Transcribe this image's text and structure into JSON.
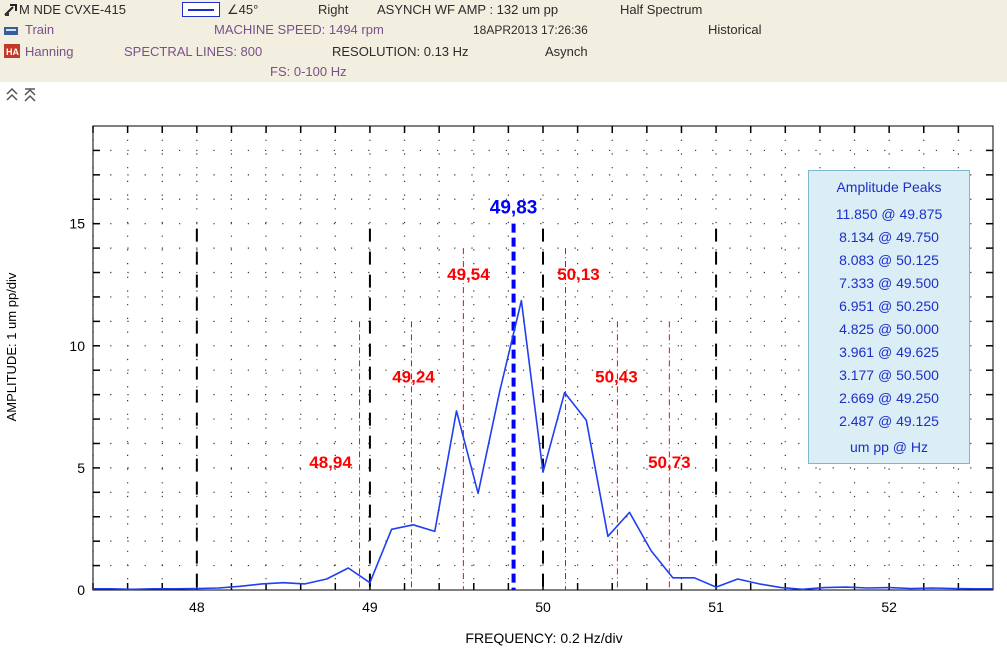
{
  "header": {
    "machine": "M NDE CVXE-415",
    "angle": "∠45°",
    "direction": "Right",
    "measurement": "ASYNCH WF AMP : 132 um pp",
    "spectrum_mode": "Half Spectrum",
    "train": "Train",
    "machine_speed": "MACHINE SPEED: 1494 rpm",
    "timestamp": "18APR2013 17:26:36",
    "data_mode": "Historical",
    "window": "Hanning",
    "spectral_lines": "SPECTRAL LINES: 800",
    "resolution": "RESOLUTION:  0.13 Hz",
    "sampling": "Asynch",
    "fs": "FS: 0-100 Hz"
  },
  "chart_data": {
    "type": "line",
    "xlabel": "FREQUENCY: 0.2 Hz/div",
    "ylabel": "AMPLITUDE: 1 um pp/div",
    "xlim": [
      47.4,
      52.6
    ],
    "ylim": [
      0,
      19
    ],
    "x_ticks": [
      48,
      49,
      50,
      51,
      52
    ],
    "y_ticks": [
      0,
      5,
      10,
      15
    ],
    "grid": "dotted",
    "series": [
      {
        "color": "#1f3ff0",
        "x": [
          47.4,
          47.5,
          47.625,
          47.75,
          47.875,
          48.0,
          48.125,
          48.25,
          48.375,
          48.5,
          48.625,
          48.75,
          48.875,
          49.0,
          49.125,
          49.25,
          49.375,
          49.5,
          49.625,
          49.75,
          49.875,
          50.0,
          50.125,
          50.25,
          50.375,
          50.5,
          50.625,
          50.75,
          50.875,
          51.0,
          51.125,
          51.25,
          51.375,
          51.5,
          51.625,
          51.75,
          51.875,
          52.0,
          52.125,
          52.25,
          52.375,
          52.5,
          52.6
        ],
        "y": [
          0.05,
          0.05,
          0.03,
          0.05,
          0.05,
          0.06,
          0.08,
          0.15,
          0.25,
          0.3,
          0.25,
          0.45,
          0.9,
          0.3,
          2.487,
          2.669,
          2.4,
          7.333,
          3.961,
          8.134,
          11.85,
          4.825,
          8.083,
          6.951,
          2.2,
          3.177,
          1.6,
          0.5,
          0.5,
          0.12,
          0.45,
          0.25,
          0.1,
          0.03,
          0.1,
          0.12,
          0.08,
          0.1,
          0.06,
          0.08,
          0.06,
          0.05,
          0.05
        ]
      }
    ],
    "major_markers": [
      48,
      49,
      50,
      51
    ],
    "center_marker": {
      "x": 49.83,
      "label": "49,83",
      "top": 15
    },
    "sideband_markers": [
      {
        "x": 48.94,
        "label": "48,94",
        "top": 11
      },
      {
        "x": 49.24,
        "label": "49,24",
        "top": 11
      },
      {
        "x": 49.54,
        "label": "49,54",
        "top": 14
      },
      {
        "x": 50.13,
        "label": "50,13",
        "top": 14
      },
      {
        "x": 50.43,
        "label": "50,43",
        "top": 11
      },
      {
        "x": 50.73,
        "label": "50,73",
        "top": 11
      }
    ]
  },
  "legend": {
    "title": "Amplitude Peaks",
    "rows": [
      "11.850 @ 49.875",
      "8.134 @ 49.750",
      "8.083 @ 50.125",
      "7.333 @ 49.500",
      "6.951 @ 50.250",
      "4.825 @ 50.000",
      "3.961 @ 49.625",
      "3.177 @ 50.500",
      "2.669 @ 49.250",
      "2.487 @ 49.125"
    ],
    "units": "um pp @   Hz"
  }
}
